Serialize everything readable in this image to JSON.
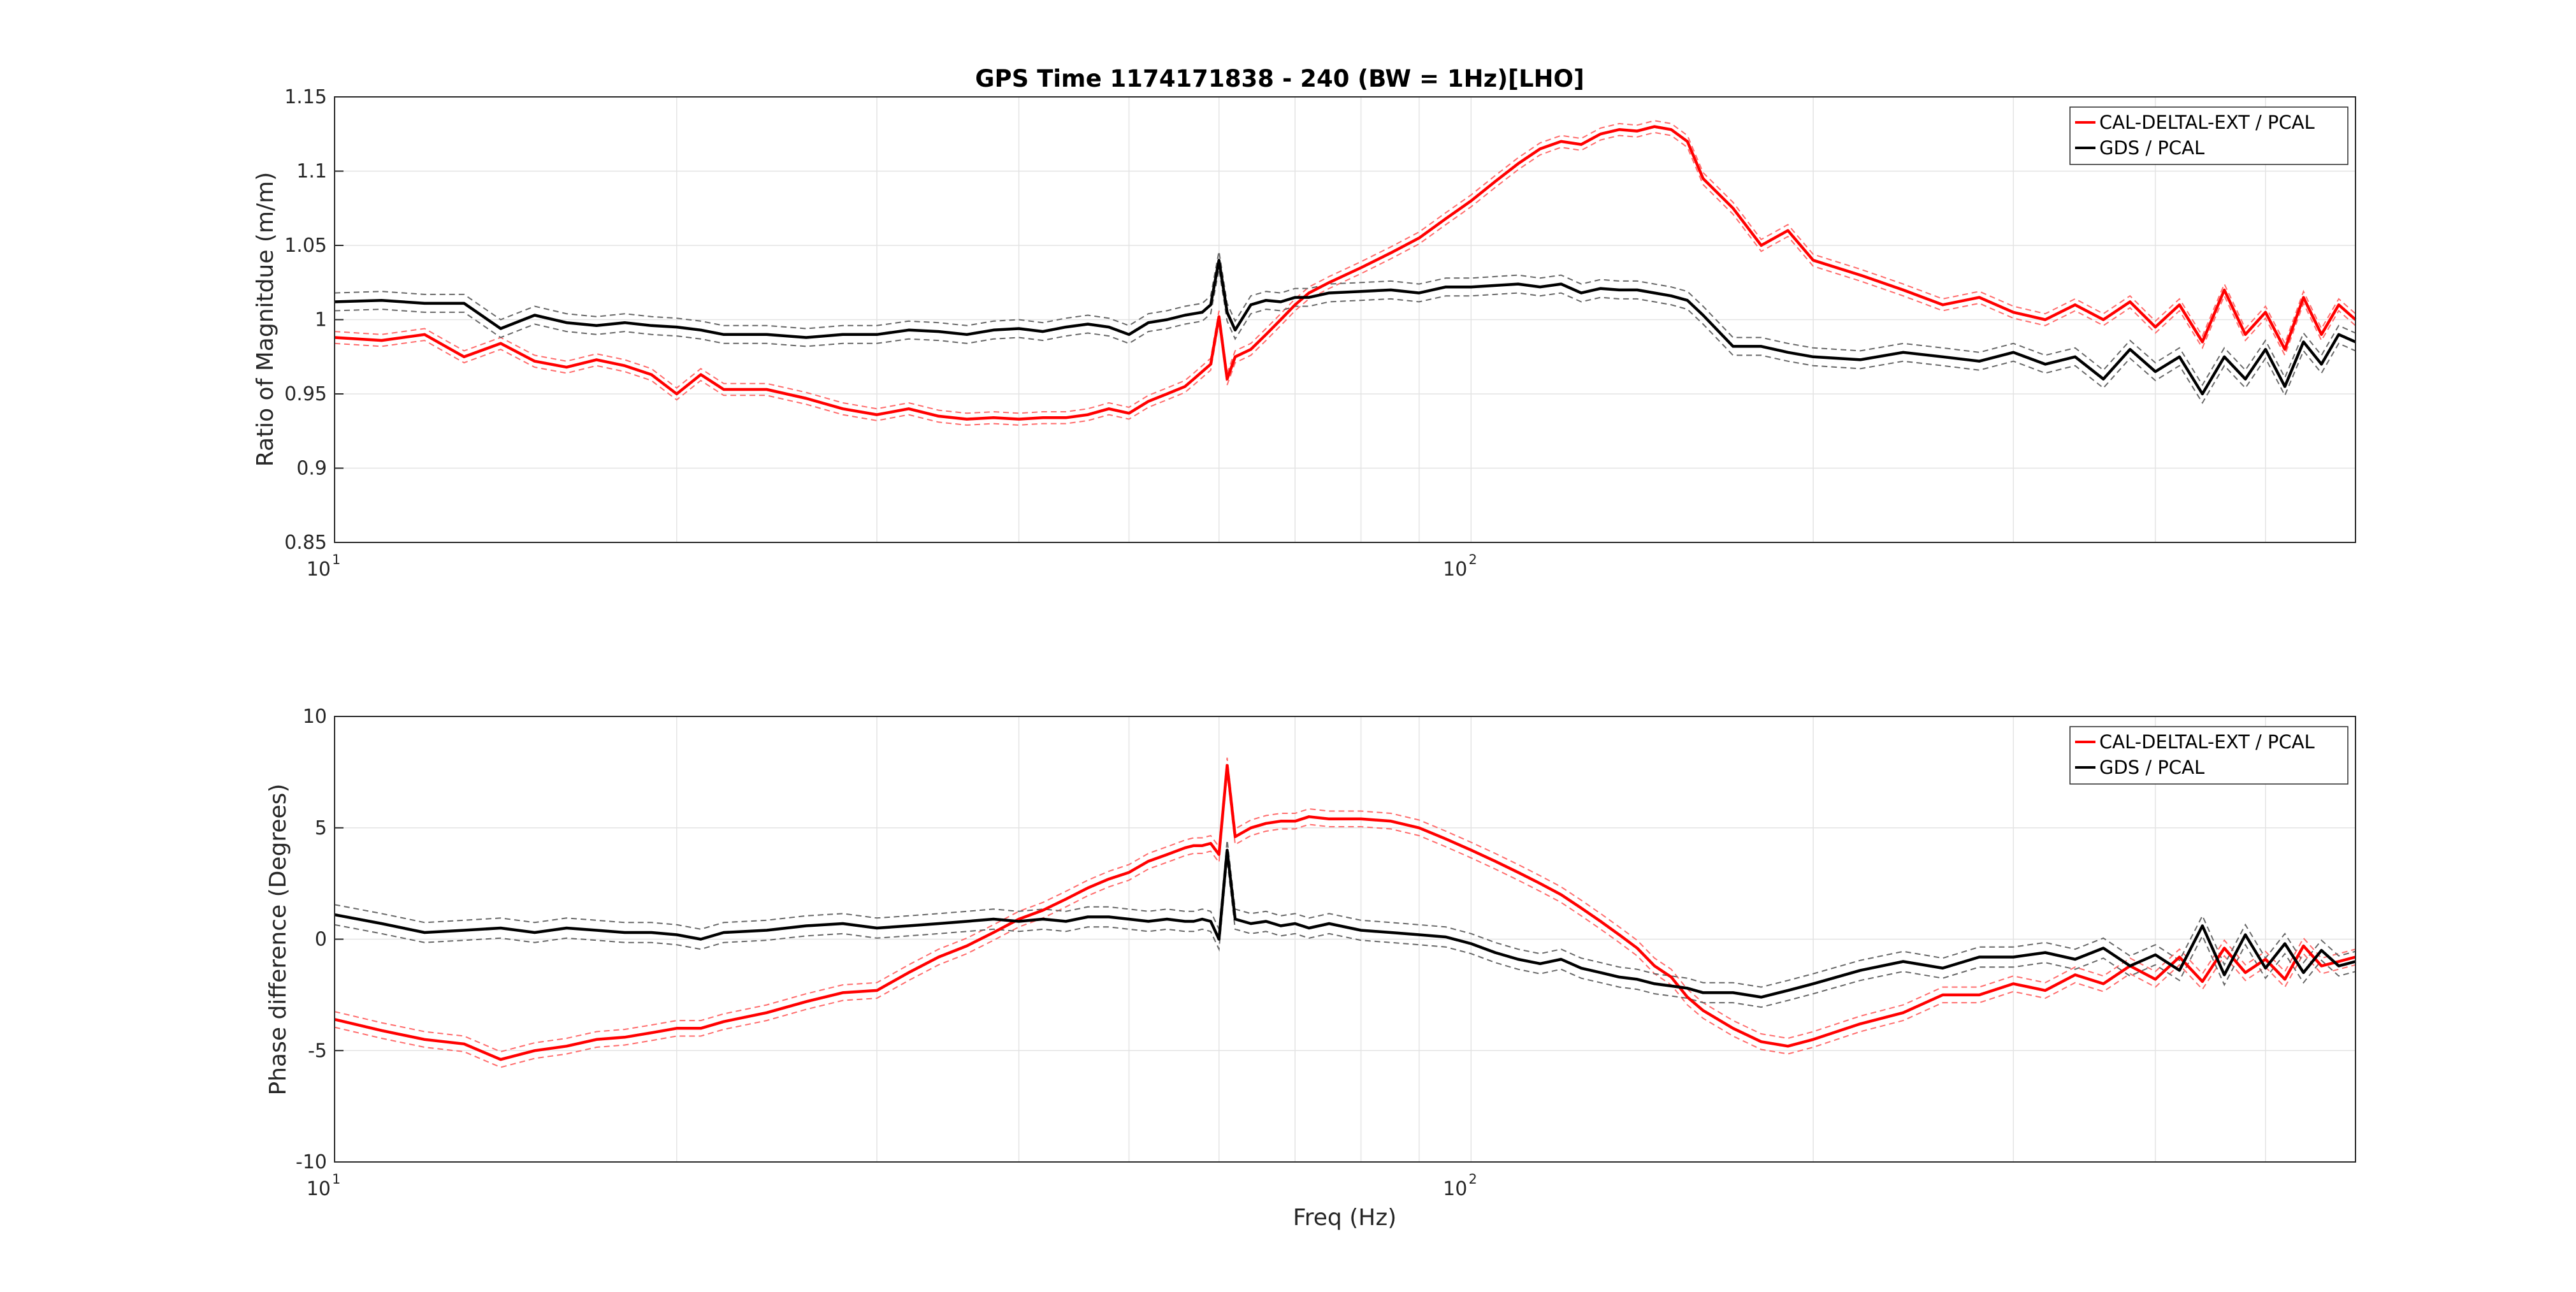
{
  "figure": {
    "title": "GPS Time 1174171838 - 240 (BW = 1Hz)[LHO]",
    "xlabel": "Freq (Hz)",
    "xtick_labels": [
      {
        "base": "10",
        "exp": "1"
      },
      {
        "base": "10",
        "exp": "2"
      }
    ]
  },
  "chart_data": [
    {
      "type": "line",
      "title": "GPS Time 1174171838 - 240 (BW = 1Hz)[LHO]",
      "xlabel": "",
      "ylabel": "Ratio of Magnitdue (m/m)",
      "xscale": "log",
      "xlim": [
        10,
        600
      ],
      "ylim": [
        0.85,
        1.15
      ],
      "yticks": [
        0.85,
        0.9,
        0.95,
        1,
        1.05,
        1.1,
        1.15
      ],
      "ytick_labels": [
        "0.85",
        "0.9",
        "0.95",
        "1",
        "1.05",
        "1.1",
        "1.15"
      ],
      "grid": true,
      "legend": "top-right",
      "legend_entries": [
        "CAL-DELTAL-EXT / PCAL",
        "GDS / PCAL"
      ],
      "series": [
        {
          "name": "CAL-DELTAL-EXT / PCAL",
          "color": "#ff0000",
          "uncertainty": 0.004,
          "x": [
            10,
            11,
            12,
            13,
            14,
            15,
            16,
            17,
            18,
            19,
            20,
            21,
            22,
            24,
            26,
            28,
            30,
            32,
            34,
            36,
            38,
            40,
            42,
            44,
            46,
            48,
            50,
            52,
            54,
            56,
            57,
            58,
            59,
            60,
            61,
            62,
            64,
            66,
            68,
            70,
            72,
            75,
            80,
            85,
            90,
            95,
            100,
            105,
            110,
            115,
            120,
            125,
            130,
            135,
            140,
            145,
            150,
            155,
            160,
            170,
            180,
            190,
            200,
            220,
            240,
            260,
            280,
            300,
            320,
            340,
            360,
            380,
            400,
            420,
            440,
            460,
            480,
            500,
            520,
            540,
            560,
            580,
            600
          ],
          "y": [
            0.988,
            0.986,
            0.99,
            0.975,
            0.984,
            0.972,
            0.968,
            0.973,
            0.969,
            0.963,
            0.95,
            0.963,
            0.953,
            0.953,
            0.947,
            0.94,
            0.936,
            0.94,
            0.935,
            0.933,
            0.934,
            0.933,
            0.934,
            0.934,
            0.936,
            0.94,
            0.937,
            0.945,
            0.95,
            0.955,
            0.96,
            0.965,
            0.97,
            1.002,
            0.96,
            0.975,
            0.98,
            0.99,
            1.0,
            1.01,
            1.018,
            1.025,
            1.035,
            1.045,
            1.055,
            1.068,
            1.08,
            1.093,
            1.105,
            1.115,
            1.12,
            1.118,
            1.125,
            1.128,
            1.127,
            1.13,
            1.128,
            1.12,
            1.095,
            1.075,
            1.05,
            1.06,
            1.04,
            1.03,
            1.02,
            1.01,
            1.015,
            1.005,
            1.0,
            1.01,
            1.0,
            1.012,
            0.995,
            1.01,
            0.985,
            1.02,
            0.99,
            1.005,
            0.98,
            1.015,
            0.99,
            1.01,
            1.0
          ]
        },
        {
          "name": "GDS / PCAL",
          "color": "#000000",
          "uncertainty": 0.006,
          "x": [
            10,
            11,
            12,
            13,
            14,
            15,
            16,
            17,
            18,
            19,
            20,
            21,
            22,
            24,
            26,
            28,
            30,
            32,
            34,
            36,
            38,
            40,
            42,
            44,
            46,
            48,
            50,
            52,
            54,
            56,
            57,
            58,
            59,
            60,
            61,
            62,
            64,
            66,
            68,
            70,
            72,
            75,
            80,
            85,
            90,
            95,
            100,
            105,
            110,
            115,
            120,
            125,
            130,
            135,
            140,
            145,
            150,
            155,
            160,
            170,
            180,
            190,
            200,
            220,
            240,
            260,
            280,
            300,
            320,
            340,
            360,
            380,
            400,
            420,
            440,
            460,
            480,
            500,
            520,
            540,
            560,
            580,
            600
          ],
          "y": [
            1.012,
            1.013,
            1.011,
            1.011,
            0.994,
            1.003,
            0.998,
            0.996,
            0.998,
            0.996,
            0.995,
            0.993,
            0.99,
            0.99,
            0.988,
            0.99,
            0.99,
            0.993,
            0.992,
            0.99,
            0.993,
            0.994,
            0.992,
            0.995,
            0.997,
            0.995,
            0.99,
            0.998,
            1.0,
            1.003,
            1.004,
            1.005,
            1.01,
            1.04,
            1.005,
            0.993,
            1.01,
            1.013,
            1.012,
            1.015,
            1.015,
            1.018,
            1.019,
            1.02,
            1.018,
            1.022,
            1.022,
            1.023,
            1.024,
            1.022,
            1.024,
            1.018,
            1.021,
            1.02,
            1.02,
            1.018,
            1.016,
            1.013,
            1.003,
            0.982,
            0.982,
            0.978,
            0.975,
            0.973,
            0.978,
            0.975,
            0.972,
            0.978,
            0.97,
            0.975,
            0.96,
            0.98,
            0.965,
            0.975,
            0.95,
            0.975,
            0.96,
            0.98,
            0.955,
            0.985,
            0.97,
            0.99,
            0.985
          ]
        }
      ]
    },
    {
      "type": "line",
      "title": "",
      "xlabel": "Freq (Hz)",
      "ylabel": "Phase difference (Degrees)",
      "xscale": "log",
      "xlim": [
        10,
        600
      ],
      "ylim": [
        -10,
        10
      ],
      "yticks": [
        -10,
        -5,
        0,
        5,
        10
      ],
      "ytick_labels": [
        "-10",
        "-5",
        "0",
        "5",
        "10"
      ],
      "grid": true,
      "legend": "top-right",
      "legend_entries": [
        "CAL-DELTAL-EXT / PCAL",
        "GDS / PCAL"
      ],
      "series": [
        {
          "name": "CAL-DELTAL-EXT / PCAL",
          "color": "#ff0000",
          "uncertainty": 0.35,
          "x": [
            10,
            11,
            12,
            13,
            14,
            15,
            16,
            17,
            18,
            19,
            20,
            21,
            22,
            24,
            26,
            28,
            30,
            32,
            34,
            36,
            38,
            40,
            42,
            44,
            46,
            48,
            50,
            52,
            54,
            56,
            57,
            58,
            59,
            60,
            61,
            62,
            64,
            66,
            68,
            70,
            72,
            75,
            80,
            85,
            90,
            95,
            100,
            105,
            110,
            115,
            120,
            125,
            130,
            135,
            140,
            145,
            150,
            155,
            160,
            170,
            180,
            190,
            200,
            220,
            240,
            260,
            280,
            300,
            320,
            340,
            360,
            380,
            400,
            420,
            440,
            460,
            480,
            500,
            520,
            540,
            560,
            580,
            600
          ],
          "y": [
            -3.6,
            -4.1,
            -4.5,
            -4.7,
            -5.4,
            -5.0,
            -4.8,
            -4.5,
            -4.4,
            -4.2,
            -4.0,
            -4.0,
            -3.7,
            -3.3,
            -2.8,
            -2.4,
            -2.3,
            -1.5,
            -0.8,
            -0.3,
            0.3,
            0.9,
            1.3,
            1.8,
            2.3,
            2.7,
            3.0,
            3.5,
            3.8,
            4.1,
            4.2,
            4.2,
            4.3,
            3.8,
            7.8,
            4.6,
            5.0,
            5.2,
            5.3,
            5.3,
            5.5,
            5.4,
            5.4,
            5.3,
            5.0,
            4.5,
            4.0,
            3.5,
            3.0,
            2.5,
            2.0,
            1.4,
            0.8,
            0.2,
            -0.4,
            -1.2,
            -1.7,
            -2.6,
            -3.2,
            -4.0,
            -4.6,
            -4.8,
            -4.5,
            -3.8,
            -3.3,
            -2.5,
            -2.5,
            -2.0,
            -2.3,
            -1.6,
            -2.0,
            -1.2,
            -1.8,
            -0.8,
            -1.9,
            -0.4,
            -1.5,
            -0.9,
            -1.8,
            -0.3,
            -1.2,
            -1.0,
            -0.8
          ]
        },
        {
          "name": "GDS / PCAL",
          "color": "#000000",
          "uncertainty": 0.45,
          "x": [
            10,
            11,
            12,
            13,
            14,
            15,
            16,
            17,
            18,
            19,
            20,
            21,
            22,
            24,
            26,
            28,
            30,
            32,
            34,
            36,
            38,
            40,
            42,
            44,
            46,
            48,
            50,
            52,
            54,
            56,
            57,
            58,
            59,
            60,
            61,
            62,
            64,
            66,
            68,
            70,
            72,
            75,
            80,
            85,
            90,
            95,
            100,
            105,
            110,
            115,
            120,
            125,
            130,
            135,
            140,
            145,
            150,
            155,
            160,
            170,
            180,
            190,
            200,
            220,
            240,
            260,
            280,
            300,
            320,
            340,
            360,
            380,
            400,
            420,
            440,
            460,
            480,
            500,
            520,
            540,
            560,
            580,
            600
          ],
          "y": [
            1.1,
            0.7,
            0.3,
            0.4,
            0.5,
            0.3,
            0.5,
            0.4,
            0.3,
            0.3,
            0.2,
            0.0,
            0.3,
            0.4,
            0.6,
            0.7,
            0.5,
            0.6,
            0.7,
            0.8,
            0.9,
            0.8,
            0.9,
            0.8,
            1.0,
            1.0,
            0.9,
            0.8,
            0.9,
            0.8,
            0.8,
            0.9,
            0.8,
            0.0,
            4.0,
            0.9,
            0.7,
            0.8,
            0.6,
            0.7,
            0.5,
            0.7,
            0.4,
            0.3,
            0.2,
            0.1,
            -0.2,
            -0.6,
            -0.9,
            -1.1,
            -0.9,
            -1.3,
            -1.5,
            -1.7,
            -1.8,
            -2.0,
            -2.1,
            -2.2,
            -2.4,
            -2.4,
            -2.6,
            -2.3,
            -2.0,
            -1.4,
            -1.0,
            -1.3,
            -0.8,
            -0.8,
            -0.6,
            -0.9,
            -0.4,
            -1.2,
            -0.7,
            -1.4,
            0.6,
            -1.6,
            0.2,
            -1.3,
            -0.2,
            -1.5,
            -0.5,
            -1.2,
            -1.0
          ]
        }
      ]
    }
  ]
}
